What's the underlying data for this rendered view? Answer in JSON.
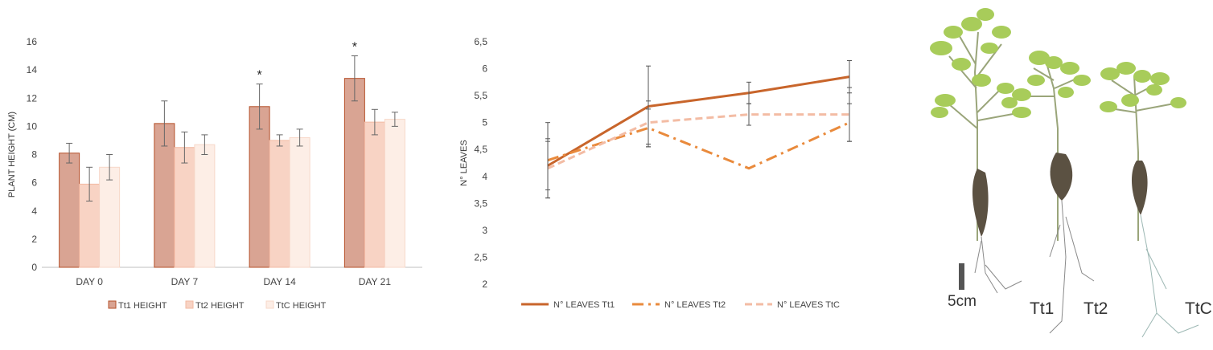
{
  "chart_data": [
    {
      "type": "bar",
      "ylabel": "PLANT HEIGHT (CM)",
      "xlabel": "",
      "ylim": [
        0,
        16
      ],
      "yticks": [
        0,
        2,
        4,
        6,
        8,
        10,
        12,
        14,
        16
      ],
      "categories": [
        "DAY 0",
        "DAY 7",
        "DAY 14",
        "DAY 21"
      ],
      "series": [
        {
          "name": "Tt1 HEIGHT",
          "values": [
            8.1,
            10.2,
            11.4,
            13.4
          ],
          "errors": [
            0.7,
            1.6,
            1.6,
            1.6
          ],
          "color": "#d9a493",
          "stroke": "#b5502a"
        },
        {
          "name": "Tt2  HEIGHT",
          "values": [
            5.9,
            8.5,
            9.0,
            10.3
          ],
          "errors": [
            1.2,
            1.1,
            0.4,
            0.9
          ],
          "color": "#f8d3c4",
          "stroke": "#f2b9a2"
        },
        {
          "name": "TtC  HEIGHT",
          "values": [
            7.1,
            8.7,
            9.2,
            10.5
          ],
          "errors": [
            0.9,
            0.7,
            0.6,
            0.5
          ],
          "color": "#fdeee6",
          "stroke": "#f7d8c9"
        }
      ],
      "annotations": [
        {
          "category": "DAY 14",
          "text": "*"
        },
        {
          "category": "DAY 21",
          "text": "*"
        }
      ],
      "legend_position": "bottom",
      "grid": false
    },
    {
      "type": "line",
      "ylabel": "N° LEAVES",
      "xlabel": "",
      "ylim": [
        2,
        6.5
      ],
      "yticks": [
        "2",
        "2,5",
        "3",
        "3,5",
        "4",
        "4,5",
        "5",
        "5,5",
        "6",
        "6,5"
      ],
      "x": [
        0,
        1,
        2,
        3
      ],
      "series": [
        {
          "name": "N° LEAVES Tt1",
          "values": [
            4.2,
            5.3,
            5.55,
            5.85
          ],
          "errors": [
            0.45,
            0.75,
            0.2,
            0.3
          ],
          "color": "#c8652b",
          "dash": "solid"
        },
        {
          "name": "N° LEAVES Tt2",
          "values": [
            4.3,
            4.9,
            4.15,
            5.0
          ],
          "errors": [
            0.7,
            0.35,
            0.0,
            0.35
          ],
          "color": "#e98a3c",
          "dash": "dashdot"
        },
        {
          "name": "N° LEAVES TtC",
          "values": [
            4.15,
            5.0,
            5.15,
            5.15
          ],
          "errors": [
            0.55,
            0.4,
            0.2,
            0.5
          ],
          "color": "#f3bca4",
          "dash": "dashed"
        }
      ],
      "legend_position": "bottom",
      "grid": false
    }
  ],
  "photo": {
    "scale_label": "5cm",
    "plant_labels": [
      "Tt1",
      "Tt2",
      "TtC"
    ]
  }
}
